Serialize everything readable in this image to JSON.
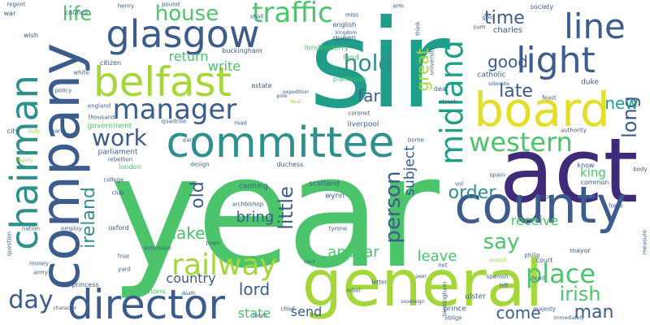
{
  "colors": {
    "background": "#ffffff",
    "green": "#4cc46b",
    "teal": "#1f9f89",
    "blue": "#3b5c8c",
    "purple": "#3f2b7a",
    "yellow": "#e3df27",
    "lime": "#a6d73a",
    "mid": "#2e8f8d"
  },
  "words": [
    "year",
    "sir",
    "act",
    "general",
    "company",
    "county",
    "board",
    "committee",
    "belfast",
    "director",
    "chairman",
    "glasgow",
    "light",
    "line",
    "manager",
    "traffic",
    "midland",
    "western",
    "railway",
    "place",
    "work",
    "house",
    "hold",
    "irish",
    "person",
    "day",
    "ireland",
    "little",
    "say",
    "order",
    "lord",
    "come",
    "man",
    "long",
    "new",
    "time",
    "good",
    "late",
    "far",
    "great",
    "return",
    "write",
    "life",
    "old",
    "make",
    "bring",
    "country",
    "leave",
    "appear",
    "receive",
    "king",
    "state",
    "send",
    "subject",
    "government",
    "parliament",
    "london",
    "estate",
    "liverpool",
    "scotland",
    "canning",
    "wynn",
    "archbishop",
    "commons",
    "princess",
    "oxford",
    "council",
    "wish",
    "war",
    "citizen",
    "buckingham",
    "londonderry",
    "land",
    "plantation",
    "english",
    "queen",
    "charles",
    "catholic",
    "duke",
    "mayor",
    "court",
    "common",
    "know",
    "college",
    "club",
    "nation",
    "money",
    "army",
    "friar",
    "yard",
    "question",
    "employ",
    "prince",
    "ulster",
    "hill",
    "head",
    "majesty",
    "letter",
    "rebel",
    "sovereign",
    "coronet",
    "dear",
    "street",
    "society",
    "feast",
    "gold",
    "sum",
    "think",
    "arm",
    "miss",
    "shall",
    "henry",
    "pound",
    "regent",
    "policy",
    "white",
    "thousand",
    "england",
    "party",
    "city",
    "lady",
    "quadrille",
    "earl",
    "road",
    "duchess",
    "design",
    "rebellion",
    "tyrone",
    "extensive",
    "town",
    "spanish",
    "philip",
    "march",
    "school",
    "force",
    "body",
    "authority",
    "measure",
    "chief",
    "vol",
    "spain",
    "sidenote",
    "university",
    "kingdom",
    "boat",
    "pole",
    "expedition",
    "peer",
    "oblige",
    "immediately",
    "death",
    "room",
    "cecil",
    "net",
    "borne",
    "birmingham",
    "character",
    "deputy",
    "leave"
  ]
}
